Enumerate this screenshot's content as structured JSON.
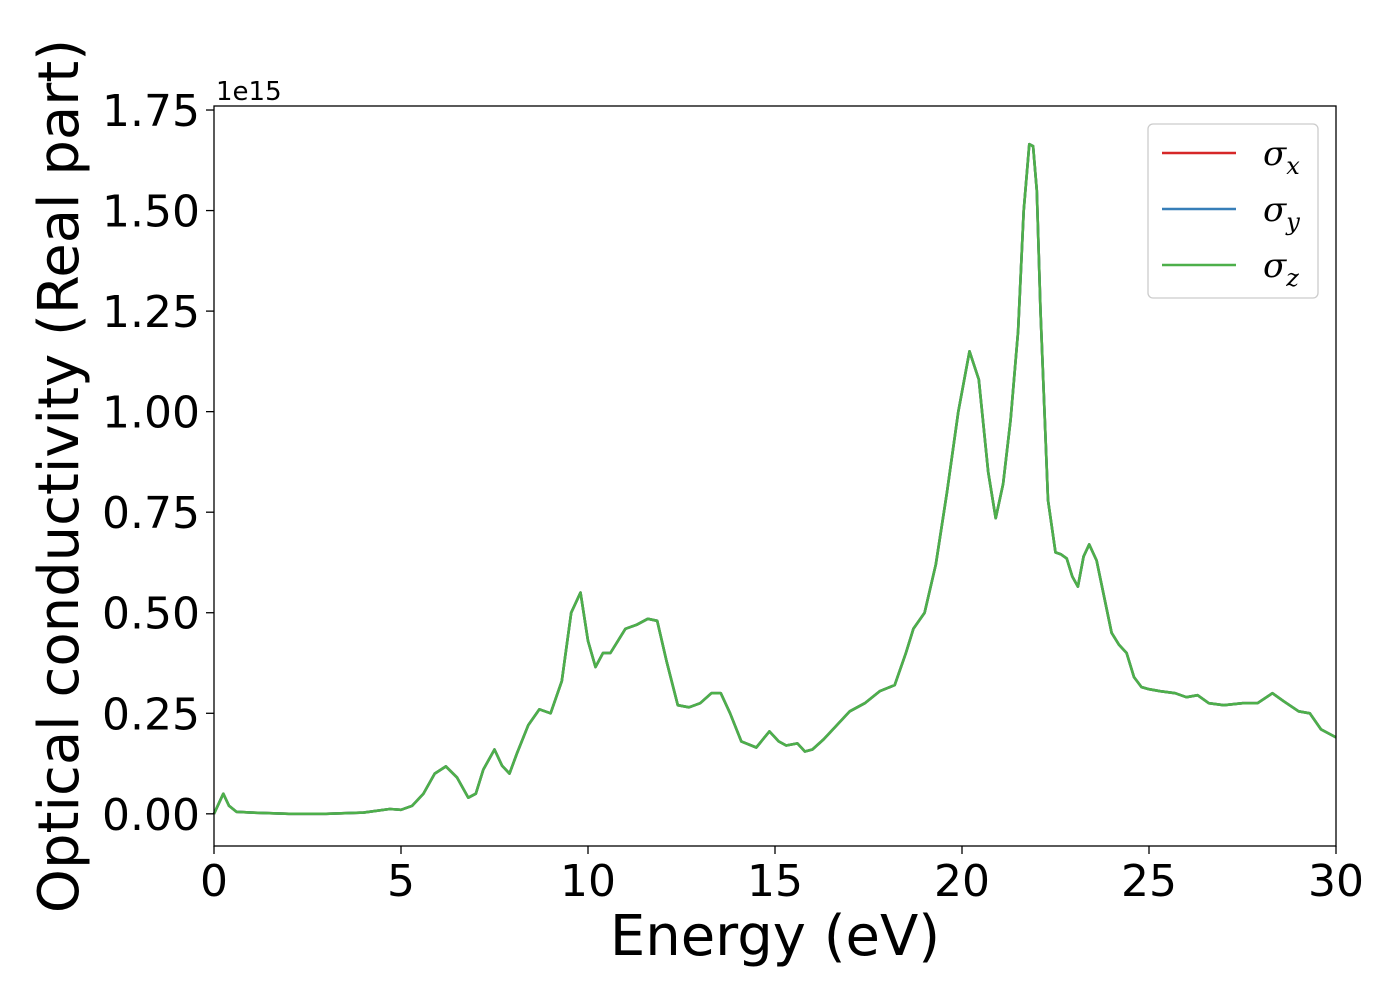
{
  "chart_data": {
    "type": "line",
    "xlabel": "Energy (eV)",
    "ylabel": "Optical conductivity (Real part)",
    "y_offset_label": "1e15",
    "y_scale": 1000000000000000.0,
    "xlim": [
      0,
      30
    ],
    "ylim": [
      -0.08,
      1.76
    ],
    "xticks": [
      0,
      5,
      10,
      15,
      20,
      25,
      30
    ],
    "xtick_labels": [
      "0",
      "5",
      "10",
      "15",
      "20",
      "25",
      "30"
    ],
    "yticks": [
      0,
      0.25,
      0.5,
      0.75,
      1.0,
      1.25,
      1.5,
      1.75
    ],
    "ytick_labels": [
      "0.00",
      "0.25",
      "0.50",
      "0.75",
      "1.00",
      "1.25",
      "1.50",
      "1.75"
    ],
    "grid": false,
    "legend_position": "upper right",
    "series": [
      {
        "name": "σx",
        "symbol": "σ",
        "subscript": "x",
        "color": "#d62728"
      },
      {
        "name": "σy",
        "symbol": "σ",
        "subscript": "y",
        "color": "#377eb8"
      },
      {
        "name": "σz",
        "symbol": "σ",
        "subscript": "z",
        "color": "#4daf4a"
      }
    ],
    "x": [
      0,
      0.1,
      0.25,
      0.4,
      0.6,
      1.0,
      2.0,
      3.0,
      4.0,
      4.7,
      5.0,
      5.3,
      5.6,
      5.9,
      6.2,
      6.5,
      6.8,
      7.0,
      7.2,
      7.5,
      7.7,
      7.9,
      8.1,
      8.4,
      8.7,
      9.0,
      9.3,
      9.55,
      9.8,
      10.0,
      10.2,
      10.4,
      10.6,
      10.8,
      11.0,
      11.3,
      11.6,
      11.85,
      12.1,
      12.4,
      12.7,
      13.0,
      13.3,
      13.55,
      13.8,
      14.1,
      14.5,
      14.85,
      15.1,
      15.3,
      15.6,
      15.8,
      16.0,
      16.3,
      16.6,
      17.0,
      17.4,
      17.8,
      18.2,
      18.5,
      18.7,
      19.0,
      19.3,
      19.6,
      19.9,
      20.2,
      20.45,
      20.7,
      20.9,
      21.1,
      21.3,
      21.5,
      21.65,
      21.8,
      21.9,
      22.0,
      22.1,
      22.3,
      22.5,
      22.65,
      22.8,
      22.95,
      23.1,
      23.25,
      23.4,
      23.6,
      23.8,
      24.0,
      24.2,
      24.4,
      24.6,
      24.8,
      25.0,
      25.3,
      25.7,
      26.0,
      26.3,
      26.6,
      27.0,
      27.5,
      27.9,
      28.3,
      28.6,
      29.0,
      29.3,
      29.6,
      30.0
    ],
    "y": [
      0.0,
      0.02,
      0.05,
      0.02,
      0.005,
      0.003,
      0.0,
      0.0,
      0.003,
      0.012,
      0.01,
      0.02,
      0.05,
      0.1,
      0.118,
      0.09,
      0.04,
      0.05,
      0.11,
      0.16,
      0.12,
      0.1,
      0.15,
      0.22,
      0.26,
      0.25,
      0.33,
      0.5,
      0.55,
      0.43,
      0.365,
      0.4,
      0.4,
      0.43,
      0.46,
      0.47,
      0.485,
      0.48,
      0.38,
      0.27,
      0.265,
      0.275,
      0.3,
      0.3,
      0.25,
      0.18,
      0.165,
      0.205,
      0.18,
      0.17,
      0.175,
      0.155,
      0.16,
      0.185,
      0.215,
      0.255,
      0.275,
      0.305,
      0.32,
      0.4,
      0.46,
      0.5,
      0.62,
      0.8,
      1.0,
      1.15,
      1.08,
      0.85,
      0.735,
      0.82,
      0.98,
      1.2,
      1.5,
      1.665,
      1.66,
      1.55,
      1.25,
      0.78,
      0.65,
      0.645,
      0.635,
      0.59,
      0.565,
      0.64,
      0.67,
      0.63,
      0.54,
      0.45,
      0.42,
      0.4,
      0.34,
      0.315,
      0.31,
      0.305,
      0.3,
      0.29,
      0.295,
      0.275,
      0.27,
      0.275,
      0.275,
      0.3,
      0.28,
      0.255,
      0.25,
      0.21,
      0.19
    ]
  }
}
